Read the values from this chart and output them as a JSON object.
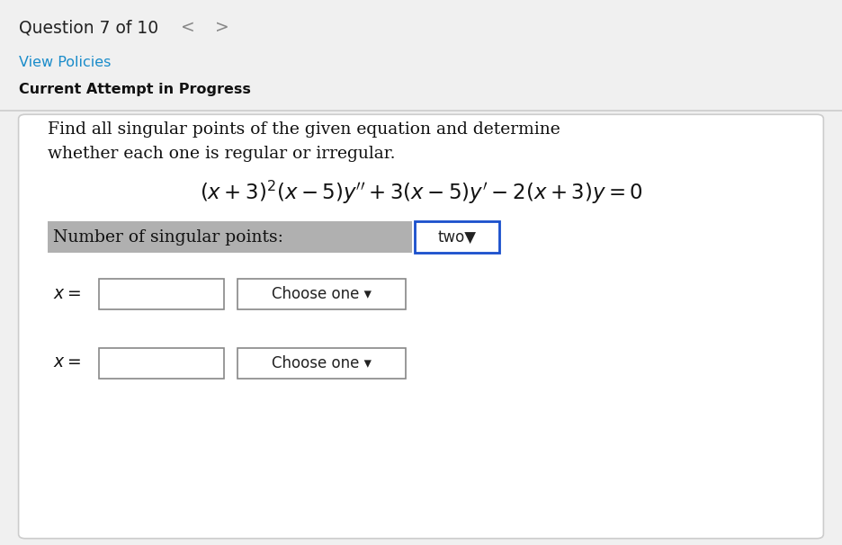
{
  "bg_color": "#f0f0f0",
  "card_bg": "#ffffff",
  "card_border": "#cccccc",
  "question_text": "Question 7 of 10",
  "nav_left": "<",
  "nav_right": ">",
  "view_policies": "View Policies",
  "view_policies_color": "#1a8cca",
  "current_attempt": "Current Attempt in Progress",
  "instruction_line1": "Find all singular points of the given equation and determine",
  "instruction_line2": "whether each one is regular or irregular.",
  "label_singular": "Number of singular points:",
  "label_singular_bg": "#b0b0b0",
  "dropdown_two_text": "two▼",
  "dropdown_two_border": "#1a4fcc",
  "choose_one": "Choose one ▾",
  "separator_color": "#cccccc"
}
